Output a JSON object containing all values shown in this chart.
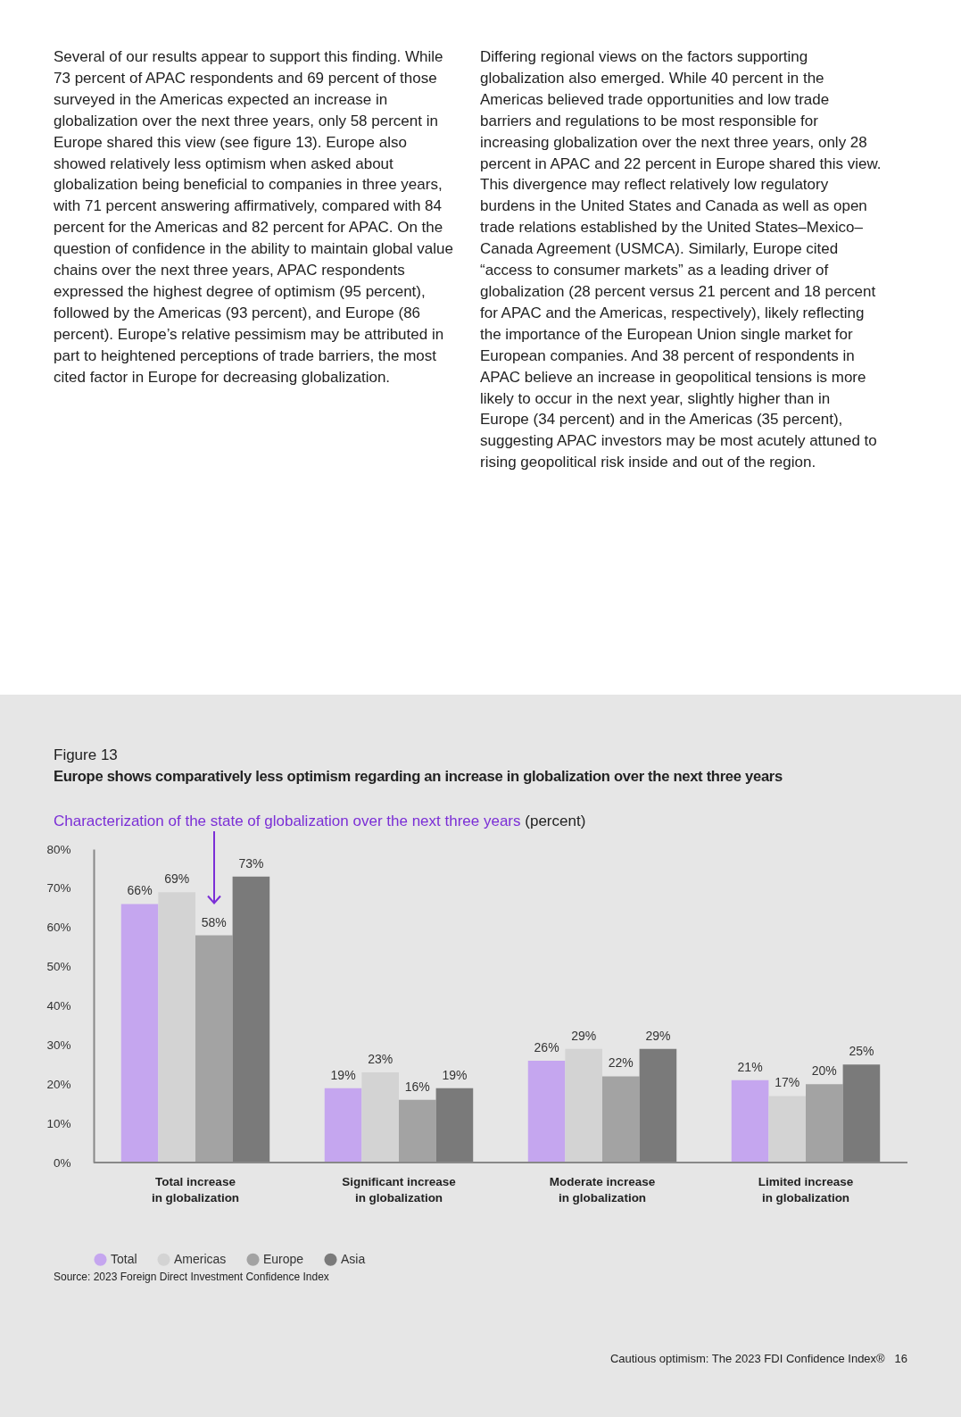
{
  "chart_data": {
    "type": "bar",
    "title": "Europe shows comparatively less optimism regarding an increase in globalization over the next three years",
    "subtitle": "Characterization of the state of globalization over the next three years",
    "ylabel": "(percent)",
    "annotations": [
      "Several of our results appear to support this finding. While 73 percent of APAC respondents and 69 percent of those surveyed in the Americas expected an increase in globalization over the next three years, only 58 percent in Europe shared this view (see figure 13). Europe also showed relatively less optimism when asked about globalization being beneficial to companies in three years, with 71 percent answering affirmatively, compared with 84 percent for the Americas and 82 percent for APAC. On the question of confidence in the ability to maintain global value chains over the next three years, APAC respondents expressed the highest degree of optimism (95 percent), followed by the Americas (93 percent), and Europe (86 percent). Europe’s relative pessimism may be attributed in part to heightened perceptions of trade barriers, the most cited factor in Europe for decreasing globalization.",
      "Differing regional views on the factors supporting globalization also emerged. While 40 percent in the Americas believed trade opportunities and low trade barriers and regulations to be most responsible for increasing globalization over the next three years, only 28 percent in APAC and 22 percent in Europe shared this view. This divergence may reflect relatively low regulatory burdens in the United States and Canada as well as open trade relations established by the United States–Mexico–Canada Agreement (USMCA). Similarly, Europe cited “access to consumer markets” as a leading driver of globalization (28 percent versus 21 percent and 18 percent for APAC and the Americas, respectively), likely reflecting the importance of the European Union single market for European companies. And 38 percent of respondents in APAC believe an increase in geopolitical tensions is more likely to occur in the next year, slightly higher than in Europe (34 percent) and in the Americas (35 percent), suggesting APAC investors may be most acutely attuned to rising geopolitical risk inside and out of the region.",
      "Figure 13",
      "Source: 2023 Foreign Direct Investment Confidence Index",
      "Cautious optimism: The 2023 FDI Confidence Index®",
      "16"
    ],
    "categories": [
      "Total increase in globalization",
      "Significant increase in globalization",
      "Moderate increase in globalization",
      "Limited increase in globalization"
    ],
    "series": [
      {
        "name": "Total",
        "color": "#c5a6ef",
        "values": [
          66,
          19,
          26,
          21
        ],
        "value_labels": [
          "66%",
          "19%",
          "26%",
          "21%"
        ]
      },
      {
        "name": "Americas",
        "color": "#d3d3d3",
        "values": [
          69,
          23,
          29,
          17
        ],
        "value_labels": [
          "69%",
          "23%",
          "29%",
          "17%"
        ]
      },
      {
        "name": "Europe",
        "color": "#a3a3a3",
        "values": [
          58,
          16,
          22,
          20
        ],
        "value_labels": [
          "58%",
          "16%",
          "22%",
          "20%"
        ]
      },
      {
        "name": "Asia",
        "color": "#7a7a7a",
        "values": [
          73,
          19,
          29,
          25
        ],
        "value_labels": [
          "73%",
          "19%",
          "29%",
          "25%"
        ]
      }
    ],
    "ylim": [
      0,
      80
    ],
    "yticks": [
      {
        "value": 0,
        "label": "0%"
      },
      {
        "value": 10,
        "label": "10%"
      },
      {
        "value": 20,
        "label": "20%"
      },
      {
        "value": 30,
        "label": "30%"
      },
      {
        "value": 40,
        "label": "40%"
      },
      {
        "value": 50,
        "label": "50%"
      },
      {
        "value": 60,
        "label": "60%"
      },
      {
        "value": 70,
        "label": "70%"
      },
      {
        "value": 80,
        "label": "80%"
      }
    ],
    "legend": "bottom",
    "grid": false
  }
}
